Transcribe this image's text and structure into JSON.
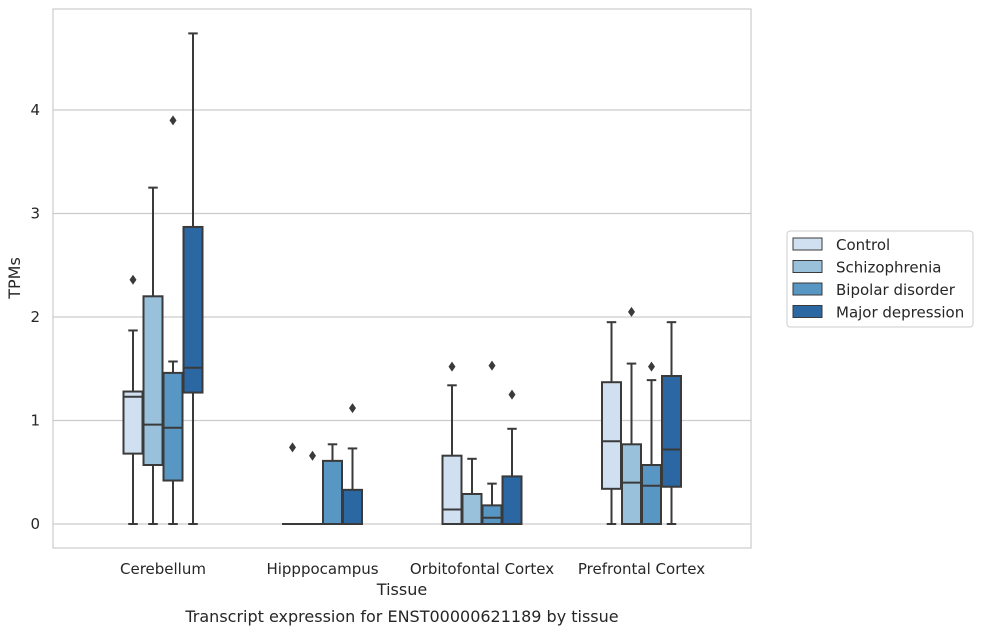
{
  "chart_data": {
    "type": "box",
    "title": "",
    "caption": "Transcript expression for ENST00000621189 by tissue",
    "xlabel": "Tissue",
    "ylabel": "TPMs",
    "ylim": [
      -0.23,
      4.97
    ],
    "yticks": [
      0,
      1,
      2,
      3,
      4
    ],
    "grid": "horizontal",
    "legend_position": "right",
    "categories": [
      "Cerebellum",
      "Hipppocampus",
      "Orbitofontal Cortex",
      "Prefrontal Cortex"
    ],
    "series": [
      {
        "name": "Control",
        "color": "#d0e0f0",
        "boxes": [
          {
            "whislo": 0,
            "q1": 0.68,
            "med": 1.23,
            "q3": 1.28,
            "whishi": 1.87,
            "fliers": [
              2.36
            ]
          },
          {
            "whislo": 0,
            "q1": 0,
            "med": 0,
            "q3": 0,
            "whishi": 0,
            "fliers": [
              0.74
            ]
          },
          {
            "whislo": 0,
            "q1": 0,
            "med": 0.14,
            "q3": 0.66,
            "whishi": 1.34,
            "fliers": [
              1.52
            ]
          },
          {
            "whislo": 0,
            "q1": 0.34,
            "med": 0.8,
            "q3": 1.37,
            "whishi": 1.95,
            "fliers": []
          }
        ]
      },
      {
        "name": "Schizophrenia",
        "color": "#9ac1dc",
        "boxes": [
          {
            "whislo": 0,
            "q1": 0.57,
            "med": 0.96,
            "q3": 2.2,
            "whishi": 3.25,
            "fliers": []
          },
          {
            "whislo": 0,
            "q1": 0,
            "med": 0,
            "q3": 0,
            "whishi": 0,
            "fliers": [
              0.66
            ]
          },
          {
            "whislo": 0,
            "q1": 0,
            "med": 0,
            "q3": 0.29,
            "whishi": 0.63,
            "fliers": []
          },
          {
            "whislo": 0,
            "q1": 0,
            "med": 0.4,
            "q3": 0.77,
            "whishi": 1.55,
            "fliers": [
              2.05
            ]
          }
        ]
      },
      {
        "name": "Bipolar disorder",
        "color": "#5896c3",
        "boxes": [
          {
            "whislo": 0,
            "q1": 0.42,
            "med": 0.93,
            "q3": 1.46,
            "whishi": 1.57,
            "fliers": [
              3.9
            ]
          },
          {
            "whislo": 0,
            "q1": 0,
            "med": 0,
            "q3": 0.61,
            "whishi": 0.77,
            "fliers": []
          },
          {
            "whislo": 0,
            "q1": 0,
            "med": 0.06,
            "q3": 0.18,
            "whishi": 0.39,
            "fliers": [
              1.53
            ]
          },
          {
            "whislo": 0,
            "q1": 0,
            "med": 0.37,
            "q3": 0.57,
            "whishi": 1.39,
            "fliers": [
              1.52
            ]
          }
        ]
      },
      {
        "name": "Major depression",
        "color": "#2a67a3",
        "boxes": [
          {
            "whislo": 0,
            "q1": 1.27,
            "med": 1.51,
            "q3": 2.87,
            "whishi": 4.74,
            "fliers": []
          },
          {
            "whislo": 0,
            "q1": 0,
            "med": 0,
            "q3": 0.33,
            "whishi": 0.73,
            "fliers": [
              1.12
            ]
          },
          {
            "whislo": 0,
            "q1": 0,
            "med": 0,
            "q3": 0.46,
            "whishi": 0.92,
            "fliers": [
              1.25
            ]
          },
          {
            "whislo": 0,
            "q1": 0.36,
            "med": 0.72,
            "q3": 1.43,
            "whishi": 1.95,
            "fliers": []
          }
        ]
      }
    ]
  }
}
